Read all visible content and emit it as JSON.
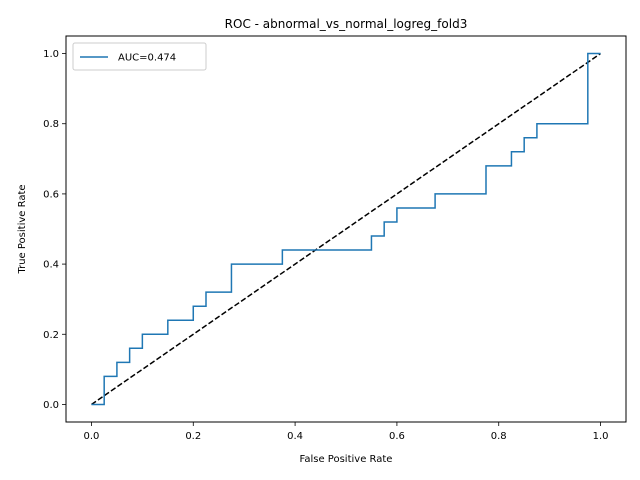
{
  "chart_data": {
    "type": "line",
    "title": "ROC - abnormal_vs_normal_logreg_fold3",
    "xlabel": "False Positive Rate",
    "ylabel": "True Positive Rate",
    "xlim": [
      -0.05,
      1.05
    ],
    "ylim": [
      -0.05,
      1.05
    ],
    "xticks": [
      0.0,
      0.2,
      0.4,
      0.6,
      0.8,
      1.0
    ],
    "xtick_labels": [
      "0.0",
      "0.2",
      "0.4",
      "0.6",
      "0.8",
      "1.0"
    ],
    "yticks": [
      0.0,
      0.2,
      0.4,
      0.6,
      0.8,
      1.0
    ],
    "ytick_labels": [
      "0.0",
      "0.2",
      "0.4",
      "0.6",
      "0.8",
      "1.0"
    ],
    "grid": false,
    "legend": {
      "placement": "upper-left"
    },
    "series": [
      {
        "name": "AUC=0.474",
        "color": "#1f77b4",
        "style": "solid",
        "x": [
          0.0,
          0.025,
          0.025,
          0.05,
          0.05,
          0.075,
          0.075,
          0.1,
          0.1,
          0.15,
          0.15,
          0.2,
          0.2,
          0.225,
          0.225,
          0.275,
          0.275,
          0.375,
          0.375,
          0.55,
          0.55,
          0.575,
          0.575,
          0.6,
          0.6,
          0.675,
          0.675,
          0.775,
          0.775,
          0.825,
          0.825,
          0.85,
          0.85,
          0.875,
          0.875,
          0.975,
          0.975,
          1.0
        ],
        "y": [
          0.0,
          0.0,
          0.08,
          0.08,
          0.12,
          0.12,
          0.16,
          0.16,
          0.2,
          0.2,
          0.24,
          0.24,
          0.28,
          0.28,
          0.32,
          0.32,
          0.4,
          0.4,
          0.44,
          0.44,
          0.48,
          0.48,
          0.52,
          0.52,
          0.56,
          0.56,
          0.6,
          0.6,
          0.68,
          0.68,
          0.72,
          0.72,
          0.76,
          0.76,
          0.8,
          0.8,
          1.0,
          1.0
        ]
      },
      {
        "color": "#000000",
        "style": "dashed",
        "x": [
          0.0,
          1.0
        ],
        "y": [
          0.0,
          1.0
        ]
      }
    ]
  }
}
